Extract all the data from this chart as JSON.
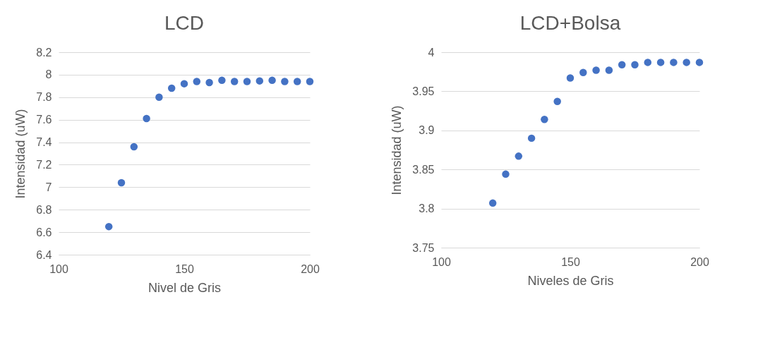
{
  "chart_data": [
    {
      "type": "scatter",
      "title": "LCD",
      "xlabel": "Nivel de Gris",
      "ylabel": "Intensidad (uW)",
      "x": [
        120,
        125,
        130,
        135,
        140,
        145,
        150,
        155,
        160,
        165,
        170,
        175,
        180,
        185,
        190,
        195,
        200
      ],
      "series": [
        {
          "color": "#4472c4",
          "values": [
            6.65,
            7.04,
            7.36,
            7.61,
            7.8,
            7.88,
            7.92,
            7.94,
            7.93,
            7.95,
            7.94,
            7.94,
            7.945,
            7.95,
            7.94,
            7.94,
            7.94
          ]
        }
      ],
      "xlim": [
        100,
        200
      ],
      "xticks": [
        100,
        150,
        200
      ],
      "ylim": [
        6.4,
        8.2
      ],
      "yticks": [
        6.4,
        6.6,
        6.8,
        7,
        7.2,
        7.4,
        7.6,
        7.8,
        8,
        8.2
      ],
      "grid": "y",
      "marker": "circle"
    },
    {
      "type": "scatter",
      "title": "LCD+Bolsa",
      "xlabel": "Niveles de Gris",
      "ylabel": "Intensidad (uW)",
      "x": [
        120,
        125,
        130,
        135,
        140,
        145,
        150,
        155,
        160,
        165,
        170,
        175,
        180,
        185,
        190,
        195,
        200
      ],
      "series": [
        {
          "color": "#4472c4",
          "values": [
            3.807,
            3.844,
            3.867,
            3.89,
            3.914,
            3.937,
            3.967,
            3.974,
            3.977,
            3.977,
            3.984,
            3.984,
            3.987,
            3.987,
            3.987,
            3.987,
            3.987
          ]
        }
      ],
      "xlim": [
        100,
        200
      ],
      "xticks": [
        100,
        150,
        200
      ],
      "ylim": [
        3.75,
        4
      ],
      "yticks": [
        3.75,
        3.8,
        3.85,
        3.9,
        3.95,
        4
      ],
      "grid": "y",
      "marker": "circle"
    }
  ]
}
